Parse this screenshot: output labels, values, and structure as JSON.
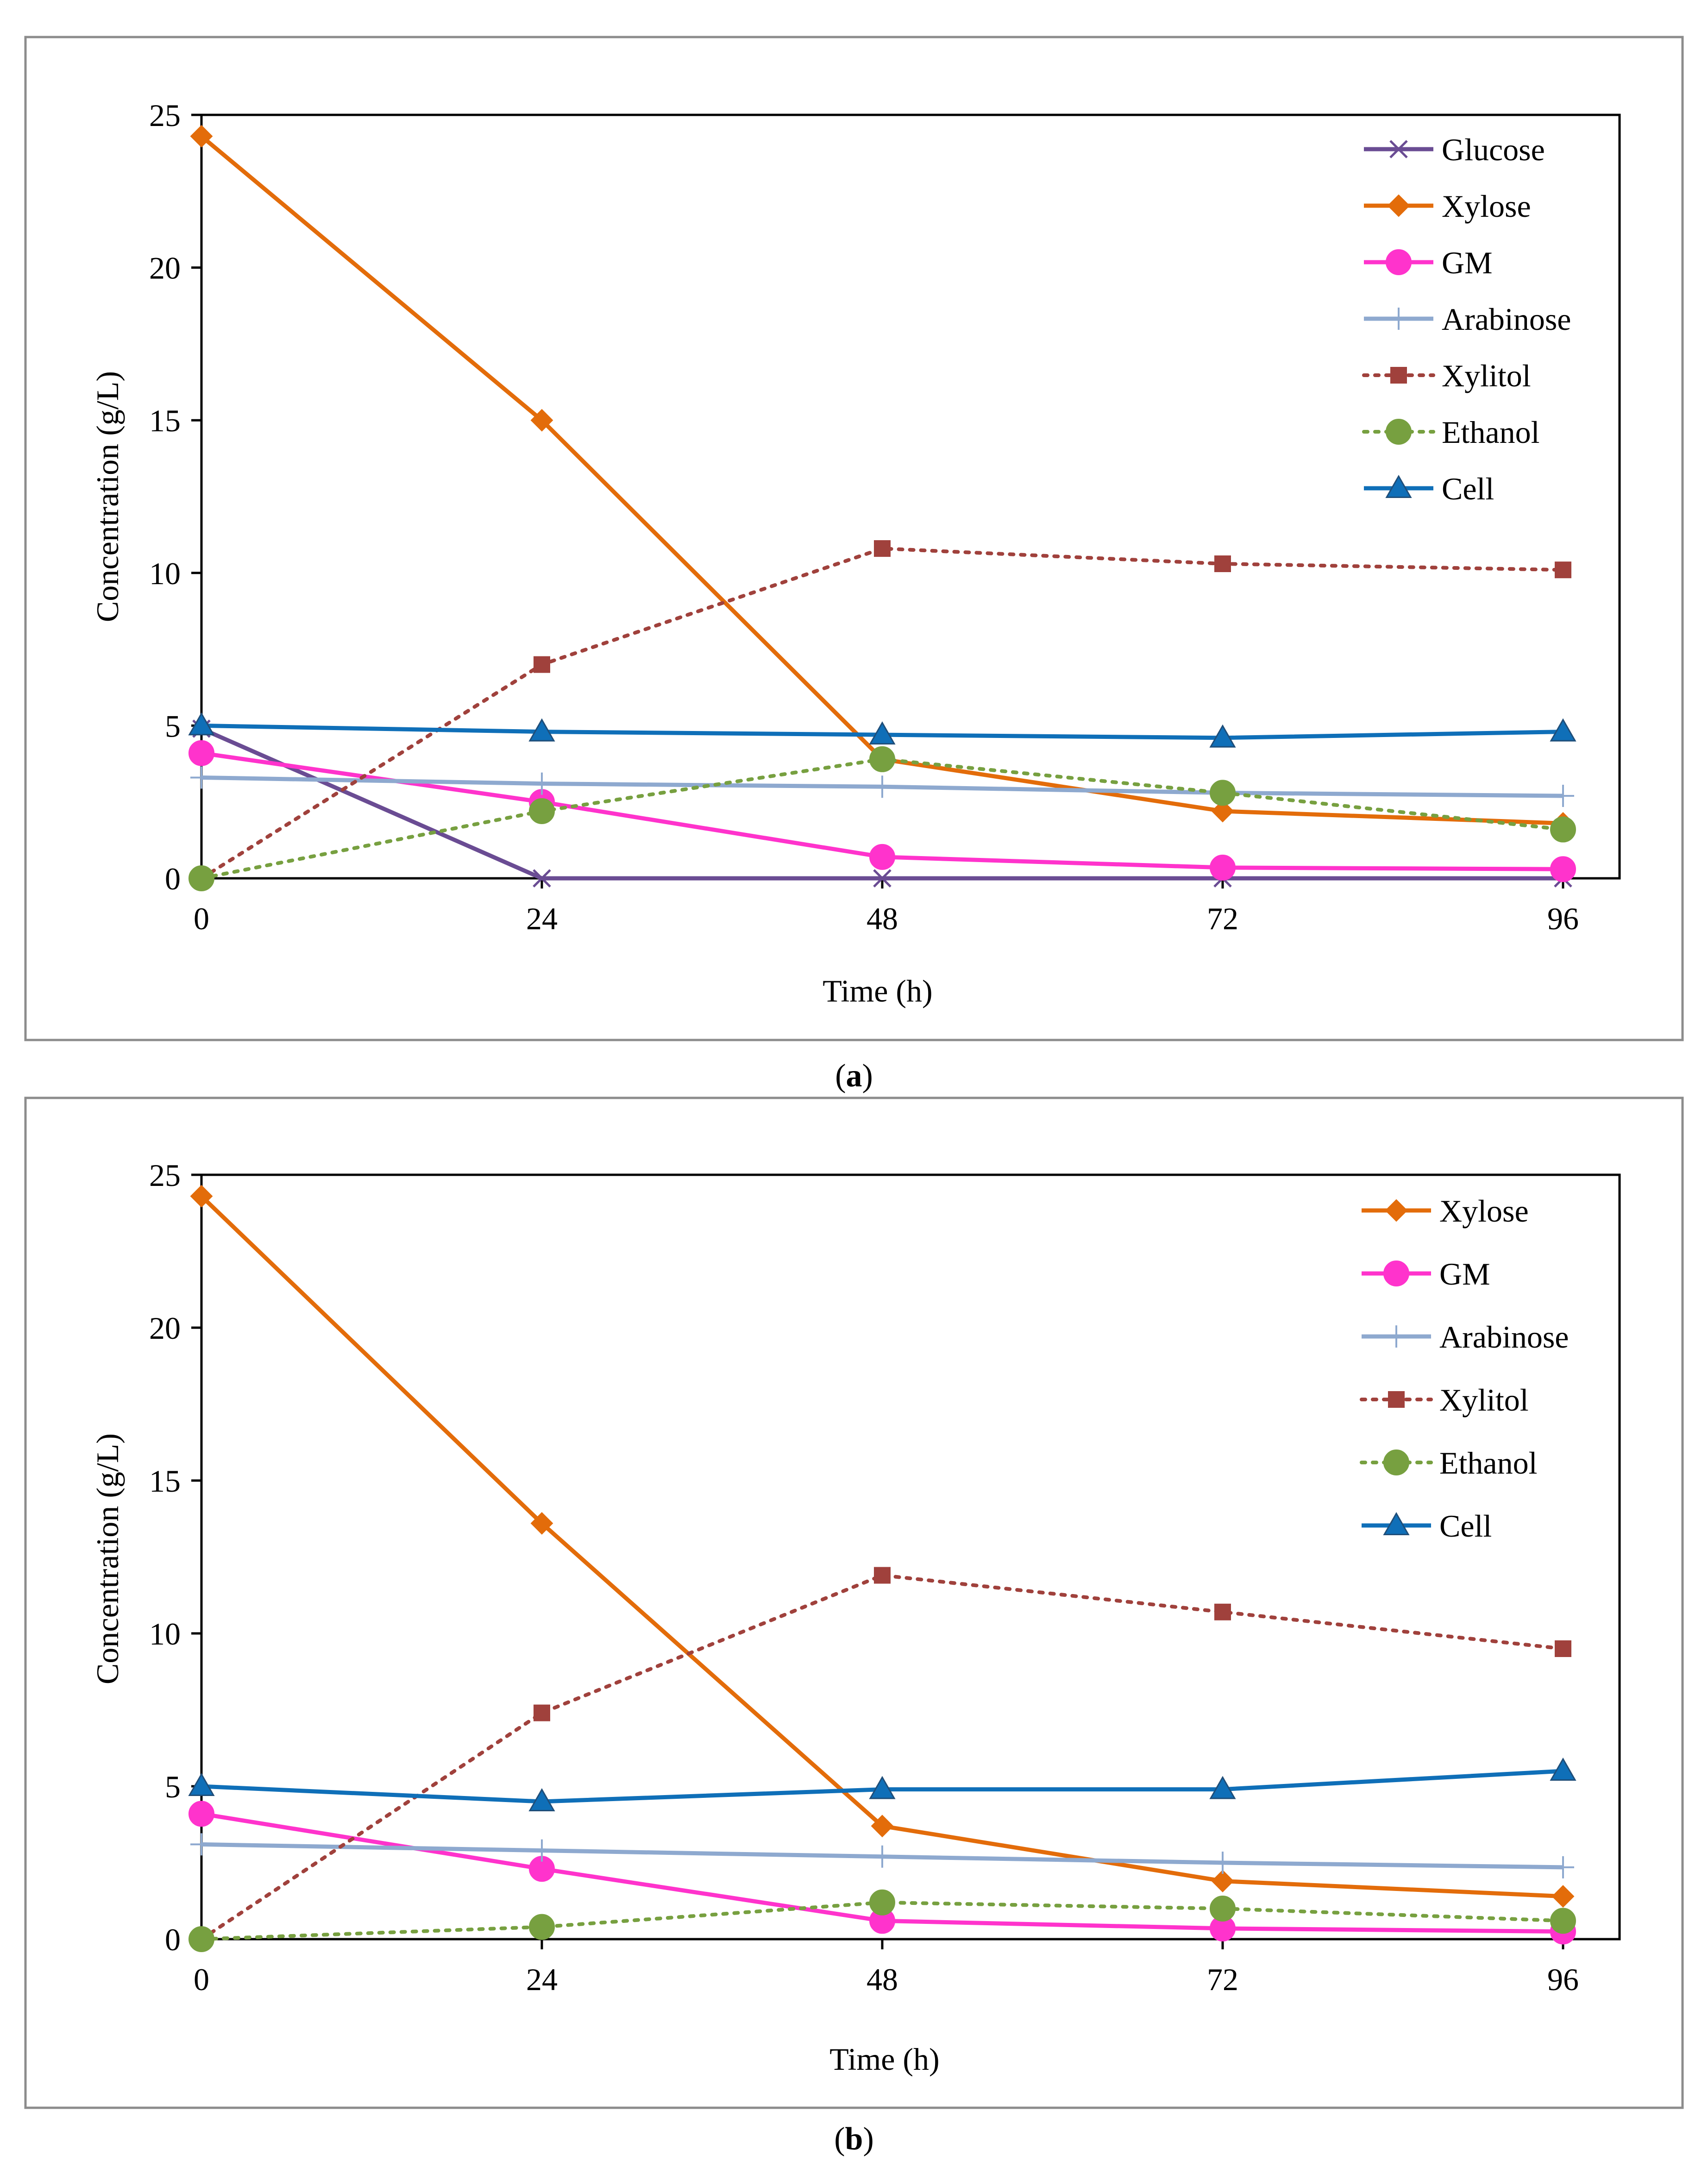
{
  "figure": {
    "panels": [
      {
        "caption_open": "(",
        "caption_letter": "a",
        "caption_close": ")"
      },
      {
        "caption_open": "(",
        "caption_letter": "b",
        "caption_close": ")"
      }
    ]
  },
  "chart_data": [
    {
      "type": "line",
      "xlabel": "Time (h)",
      "ylabel": "Concentration (g/L)",
      "x": [
        0,
        24,
        48,
        72,
        96
      ],
      "xticks": [
        "0",
        "24",
        "48",
        "72",
        "96"
      ],
      "yticks": [
        "0",
        "5",
        "10",
        "15",
        "20",
        "25"
      ],
      "xlim": [
        0,
        100
      ],
      "ylim": [
        0,
        25
      ],
      "legend_position": "top-right",
      "series": [
        {
          "name": "Glucose",
          "values": [
            4.9,
            0.0,
            0.0,
            0.0,
            0.0
          ],
          "color": "#6A4C93",
          "marker": "x",
          "dash": "solid"
        },
        {
          "name": "Xylose",
          "values": [
            24.3,
            15.0,
            3.9,
            2.2,
            1.8
          ],
          "color": "#E36C0A",
          "marker": "diamond",
          "dash": "solid"
        },
        {
          "name": "GM",
          "values": [
            4.1,
            2.5,
            0.7,
            0.35,
            0.3
          ],
          "color": "#FF33CC",
          "marker": "circle",
          "dash": "solid"
        },
        {
          "name": "Arabinose",
          "values": [
            3.3,
            3.1,
            3.0,
            2.8,
            2.7
          ],
          "color": "#8EA9CF",
          "marker": "plus",
          "dash": "solid"
        },
        {
          "name": "Xylitol",
          "values": [
            0.0,
            7.0,
            10.8,
            10.3,
            10.1
          ],
          "color": "#A0413C",
          "marker": "square",
          "dash": "dotted"
        },
        {
          "name": "Ethanol",
          "values": [
            0.0,
            2.2,
            3.9,
            2.8,
            1.6
          ],
          "color": "#77A040",
          "marker": "circle",
          "dash": "dotted"
        },
        {
          "name": "Cell",
          "values": [
            5.0,
            4.8,
            4.7,
            4.6,
            4.8
          ],
          "color": "#0F6FB8",
          "marker": "triangle",
          "dash": "solid"
        }
      ]
    },
    {
      "type": "line",
      "xlabel": "Time (h)",
      "ylabel": "Concentration (g/L)",
      "x": [
        0,
        24,
        48,
        72,
        96
      ],
      "xticks": [
        "0",
        "24",
        "48",
        "72",
        "96"
      ],
      "yticks": [
        "0",
        "5",
        "10",
        "15",
        "20",
        "25"
      ],
      "xlim": [
        0,
        100
      ],
      "ylim": [
        0,
        25
      ],
      "legend_position": "top-right",
      "series": [
        {
          "name": "Xylose",
          "values": [
            24.3,
            13.6,
            3.7,
            1.9,
            1.4
          ],
          "color": "#E36C0A",
          "marker": "diamond",
          "dash": "solid"
        },
        {
          "name": "GM",
          "values": [
            4.1,
            2.3,
            0.6,
            0.35,
            0.25
          ],
          "color": "#FF33CC",
          "marker": "circle",
          "dash": "solid"
        },
        {
          "name": "Arabinose",
          "values": [
            3.1,
            2.9,
            2.7,
            2.5,
            2.35
          ],
          "color": "#8EA9CF",
          "marker": "plus",
          "dash": "solid"
        },
        {
          "name": "Xylitol",
          "values": [
            0.0,
            7.4,
            11.9,
            10.7,
            9.5
          ],
          "color": "#A0413C",
          "marker": "square",
          "dash": "dotted"
        },
        {
          "name": "Ethanol",
          "values": [
            0.0,
            0.4,
            1.2,
            1.0,
            0.6
          ],
          "color": "#77A040",
          "marker": "circle",
          "dash": "dotted"
        },
        {
          "name": "Cell",
          "values": [
            5.0,
            4.5,
            4.9,
            4.9,
            5.5
          ],
          "color": "#0F6FB8",
          "marker": "triangle",
          "dash": "solid"
        }
      ]
    }
  ]
}
